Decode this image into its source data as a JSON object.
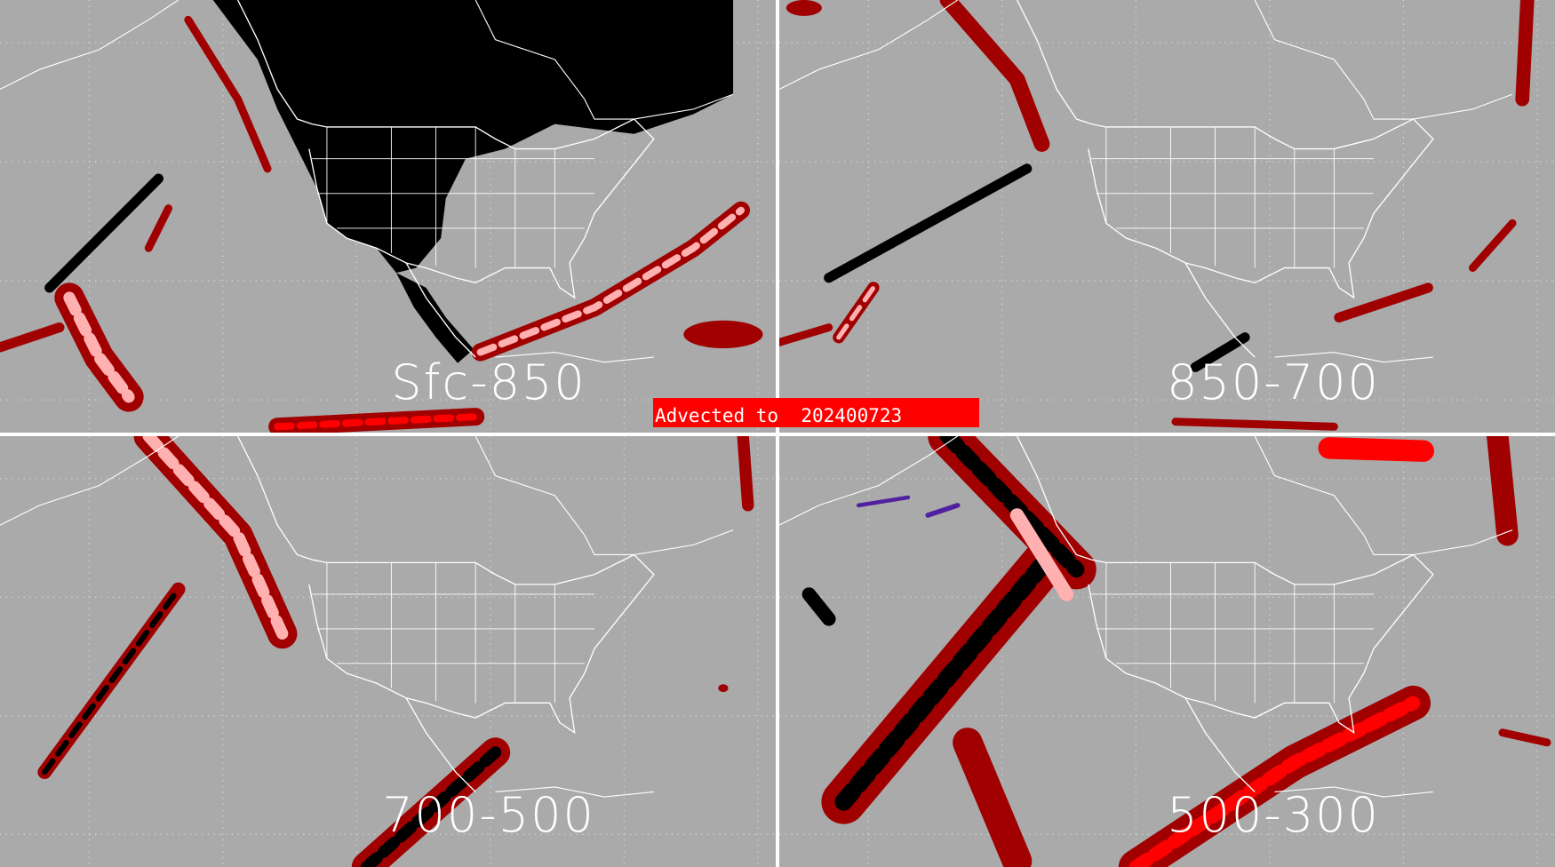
{
  "panels": [
    {
      "label": "Sfc-850"
    },
    {
      "label": "850-700"
    },
    {
      "label": "700-500"
    },
    {
      "label": "500-300"
    }
  ],
  "banner": {
    "text": "Advected to  202400723"
  },
  "colors": {
    "background": "#aaaaaa",
    "land_mask": "#000000",
    "dark_red": "#a00000",
    "light_pink": "#ffb0b0",
    "bright_red": "#ff0000",
    "purple": "#5020a0",
    "coastline": "#ffffff"
  }
}
